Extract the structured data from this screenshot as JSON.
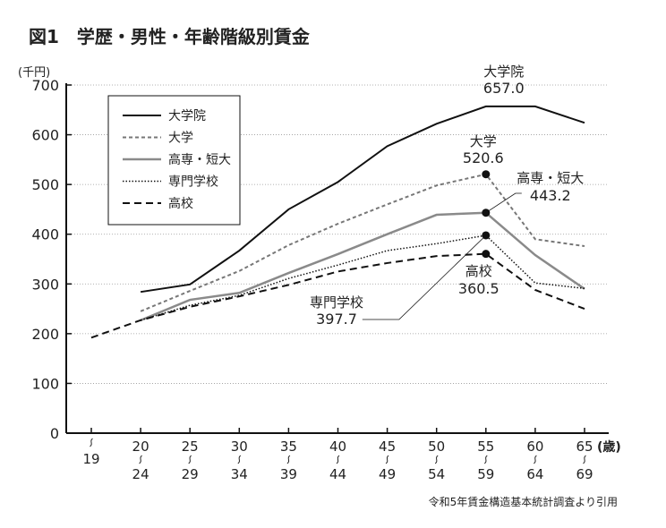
{
  "chart_data": {
    "type": "line",
    "title": "図1　学歴・男性・年齢階級別賃金",
    "ylabel": "(千円)",
    "xlabel": "(歳)",
    "ylim": [
      0,
      700
    ],
    "yticks": [
      0,
      100,
      200,
      300,
      400,
      500,
      600,
      700
    ],
    "grid": true,
    "legend_position": "top-left",
    "categories": [
      {
        "top": "",
        "bottom": "19"
      },
      {
        "top": "20",
        "bottom": "24"
      },
      {
        "top": "25",
        "bottom": "29"
      },
      {
        "top": "30",
        "bottom": "34"
      },
      {
        "top": "35",
        "bottom": "39"
      },
      {
        "top": "40",
        "bottom": "44"
      },
      {
        "top": "45",
        "bottom": "49"
      },
      {
        "top": "50",
        "bottom": "54"
      },
      {
        "top": "55",
        "bottom": "59"
      },
      {
        "top": "60",
        "bottom": "64"
      },
      {
        "top": "65",
        "bottom": "69"
      }
    ],
    "series": [
      {
        "name": "大学院",
        "style": "solid",
        "color": "#111111",
        "values": [
          null,
          284,
          299,
          367,
          450,
          505,
          577,
          622,
          657.0,
          657,
          624
        ]
      },
      {
        "name": "大学",
        "style": "dashed-short",
        "color": "#777777",
        "values": [
          null,
          245,
          286,
          326,
          378,
          421,
          460,
          498,
          520.6,
          390,
          376
        ]
      },
      {
        "name": "高専・短大",
        "style": "solid-gray",
        "color": "#8a8a8a",
        "values": [
          null,
          227,
          268,
          282,
          322,
          360,
          400,
          439,
          443.2,
          358,
          290
        ]
      },
      {
        "name": "専門学校",
        "style": "dotted",
        "color": "#111111",
        "values": [
          null,
          227,
          257,
          277,
          311,
          338,
          367,
          381,
          397.7,
          302,
          291
        ]
      },
      {
        "name": "高校",
        "style": "dashed-long",
        "color": "#111111",
        "values": [
          192,
          227,
          254,
          275,
          298,
          325,
          342,
          356,
          360.5,
          288,
          250
        ]
      }
    ],
    "annotations": [
      {
        "series": "大学院",
        "label": "大学院",
        "value": "657.0"
      },
      {
        "series": "大学",
        "label": "大学",
        "value": "520.6"
      },
      {
        "series": "高専・短大",
        "label": "高専・短大",
        "value": "443.2"
      },
      {
        "series": "高校",
        "label": "高校",
        "value": "360.5"
      },
      {
        "series": "専門学校",
        "label": "専門学校",
        "value": "397.7"
      }
    ],
    "source": "令和5年賃金構造基本統計調査より引用"
  }
}
